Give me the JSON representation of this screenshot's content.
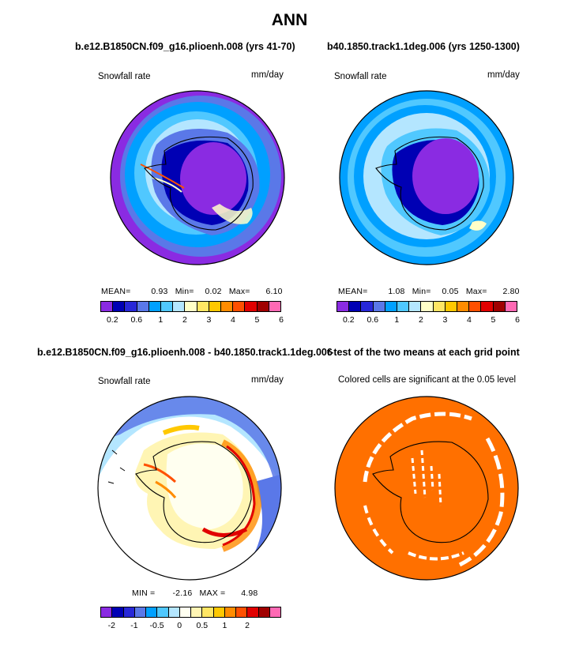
{
  "title": "ANN",
  "panels": [
    {
      "title": "b.e12.B1850CN.f09_g16.plioenh.008 (yrs 41-70)",
      "variable": "Snowfall rate",
      "units": "mm/day",
      "stats": {
        "mean_label": "MEAN=",
        "mean": "0.93",
        "min_label": "Min=",
        "min": "0.02",
        "max_label": "Max=",
        "max": "6.10"
      },
      "colorbar": {
        "colors": [
          "#8a2be2",
          "#0000b4",
          "#2828d8",
          "#5a78e8",
          "#00a0ff",
          "#50c8ff",
          "#b4e6ff",
          "#ffffc8",
          "#ffe664",
          "#ffc800",
          "#ff8c00",
          "#ff5000",
          "#e10000",
          "#a00000",
          "#ff69b4"
        ],
        "ticks": [
          "0.2",
          "0.6",
          "1",
          "2",
          "3",
          "4",
          "5",
          "6"
        ]
      }
    },
    {
      "title": "b40.1850.track1.1deg.006 (yrs 1250-1300)",
      "variable": "Snowfall rate",
      "units": "mm/day",
      "stats": {
        "mean_label": "MEAN=",
        "mean": "1.08",
        "min_label": "Min=",
        "min": "0.05",
        "max_label": "Max=",
        "max": "2.80"
      },
      "colorbar": {
        "colors": [
          "#8a2be2",
          "#0000b4",
          "#2828d8",
          "#5a78e8",
          "#00a0ff",
          "#50c8ff",
          "#b4e6ff",
          "#ffffc8",
          "#ffe664",
          "#ffc800",
          "#ff8c00",
          "#ff5000",
          "#e10000",
          "#a00000",
          "#ff69b4"
        ],
        "ticks": [
          "0.2",
          "0.6",
          "1",
          "2",
          "3",
          "4",
          "5",
          "6"
        ]
      }
    },
    {
      "title": "b.e12.B1850CN.f09_g16.plioenh.008 - b40.1850.track1.1deg.006",
      "variable": "Snowfall rate",
      "units": "mm/day",
      "stats": {
        "min_label": "MIN =",
        "min": "-2.16",
        "max_label": "MAX =",
        "max": "4.98"
      },
      "colorbar": {
        "colors": [
          "#8a2be2",
          "#0000b4",
          "#2828d8",
          "#5a78e8",
          "#00a0ff",
          "#50c8ff",
          "#b4e6ff",
          "#fffff0",
          "#fff5b4",
          "#ffe664",
          "#ffc800",
          "#ff8c00",
          "#ff5000",
          "#e10000",
          "#a00000",
          "#ff69b4"
        ],
        "ticks": [
          "-2",
          "-1",
          "-0.5",
          "0",
          "0.5",
          "1",
          "2"
        ]
      }
    },
    {
      "title": "t-test of the two means at each grid point",
      "subtitle": "Colored cells are significant at the 0.05 level",
      "fill_color": "#ff7000"
    }
  ],
  "chart_data": [
    {
      "type": "heatmap",
      "title": "b.e12.B1850CN.f09_g16.plioenh.008 (yrs 41-70)",
      "variable": "Snowfall rate",
      "units": "mm/day",
      "mean": 0.93,
      "min": 0.02,
      "max": 6.1,
      "levels": [
        0.2,
        0.6,
        1,
        2,
        3,
        4,
        5,
        6
      ],
      "projection": "polar stereographic, Southern Hemisphere"
    },
    {
      "type": "heatmap",
      "title": "b40.1850.track1.1deg.006 (yrs 1250-1300)",
      "variable": "Snowfall rate",
      "units": "mm/day",
      "mean": 1.08,
      "min": 0.05,
      "max": 2.8,
      "levels": [
        0.2,
        0.6,
        1,
        2,
        3,
        4,
        5,
        6
      ],
      "projection": "polar stereographic, Southern Hemisphere"
    },
    {
      "type": "heatmap",
      "title": "b.e12.B1850CN.f09_g16.plioenh.008 - b40.1850.track1.1deg.006",
      "variable": "Snowfall rate",
      "units": "mm/day",
      "min": -2.16,
      "max": 4.98,
      "levels": [
        -2,
        -1,
        -0.5,
        0,
        0.5,
        1,
        2
      ],
      "projection": "polar stereographic, Southern Hemisphere"
    },
    {
      "type": "heatmap",
      "title": "t-test of the two means at each grid point",
      "subtitle": "Colored cells are significant at the 0.05 level",
      "projection": "polar stereographic, Southern Hemisphere"
    }
  ]
}
